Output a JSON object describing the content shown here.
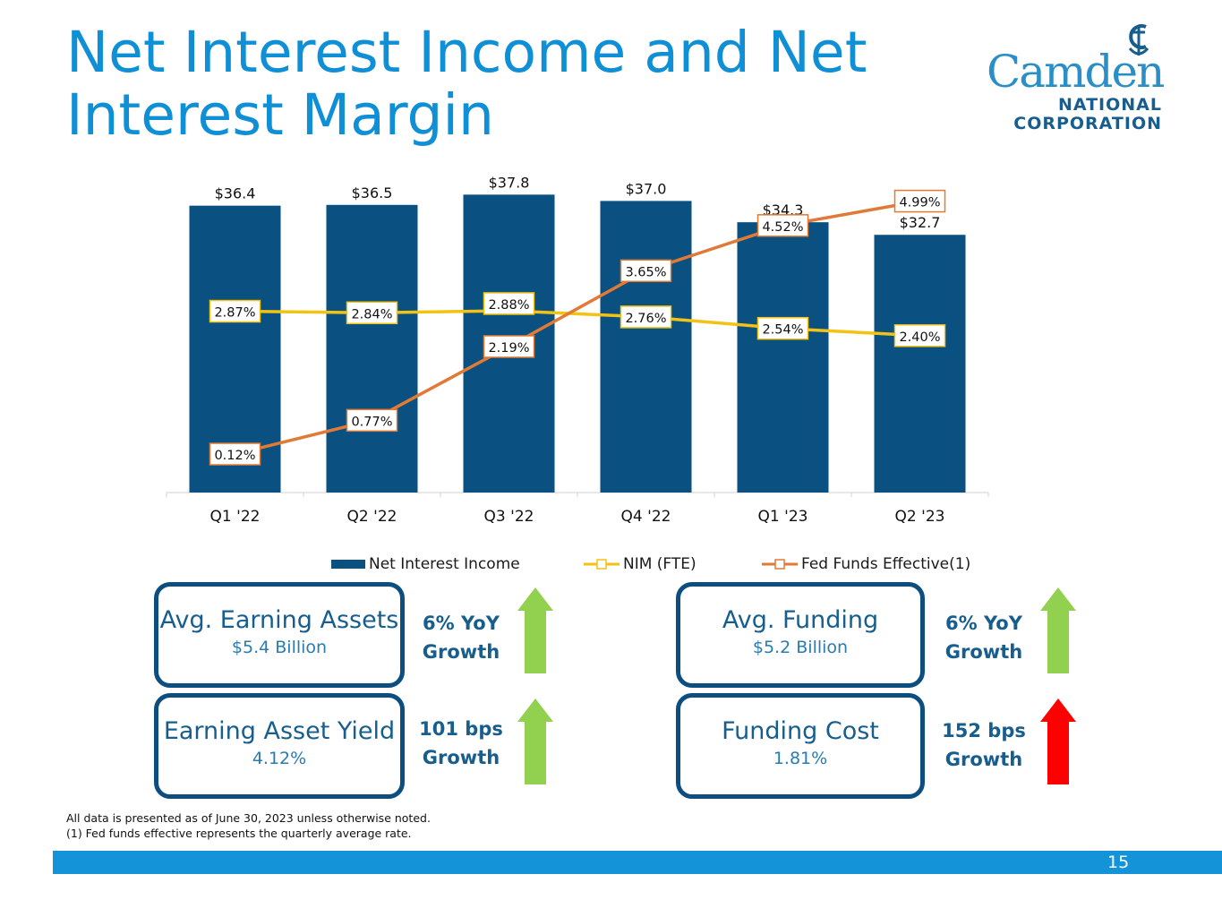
{
  "slide": {
    "title": "Net Interest Income and Net Interest Margin",
    "page_number": "15"
  },
  "logo": {
    "word": "Camden",
    "line1": "NATIONAL",
    "line2": "CORPORATION",
    "icon": "anchor-icon"
  },
  "chart_data": {
    "type": "bar",
    "categories": [
      "Q1 '22",
      "Q2 '22",
      "Q3 '22",
      "Q4 '22",
      "Q1 '23",
      "Q2 '23"
    ],
    "series": [
      {
        "name": "Net Interest Income",
        "type": "bar",
        "color": "#0a5080",
        "values": [
          36.4,
          36.5,
          37.8,
          37.0,
          34.3,
          32.7
        ],
        "labels": [
          "$36.4",
          "$36.5",
          "$37.8",
          "$37.0",
          "$34.3",
          "$32.7"
        ]
      },
      {
        "name": "NIM (FTE)",
        "type": "line",
        "color": "#f2c214",
        "values": [
          2.87,
          2.84,
          2.88,
          2.76,
          2.54,
          2.4
        ],
        "labels": [
          "2.87%",
          "2.84%",
          "2.88%",
          "2.76%",
          "2.54%",
          "2.40%"
        ]
      },
      {
        "name": "Fed Funds Effective(1)",
        "type": "line",
        "color": "#e07a36",
        "values": [
          0.12,
          0.77,
          2.19,
          3.65,
          4.52,
          4.99
        ],
        "labels": [
          "0.12%",
          "0.77%",
          "2.19%",
          "3.65%",
          "4.52%",
          "4.99%"
        ]
      }
    ],
    "legend_position": "bottom",
    "grid": false
  },
  "metrics": [
    {
      "title": "Avg. Earning Assets",
      "value": "$5.4 Billion",
      "growth_line1": "6% YoY",
      "growth_line2": "Growth",
      "arrow_color": "#92d050"
    },
    {
      "title": "Earning Asset Yield",
      "value": "4.12%",
      "growth_line1": "101 bps",
      "growth_line2": "Growth",
      "arrow_color": "#92d050"
    },
    {
      "title": "Avg. Funding",
      "value": "$5.2 Billion",
      "growth_line1": "6% YoY",
      "growth_line2": "Growth",
      "arrow_color": "#92d050"
    },
    {
      "title": "Funding Cost",
      "value": "1.81%",
      "growth_line1": "152 bps",
      "growth_line2": "Growth",
      "arrow_color": "#ff0000"
    }
  ],
  "footnotes": [
    "All data is presented as of June 30, 2023 unless otherwise noted.",
    "(1) Fed funds effective represents the quarterly average rate."
  ]
}
